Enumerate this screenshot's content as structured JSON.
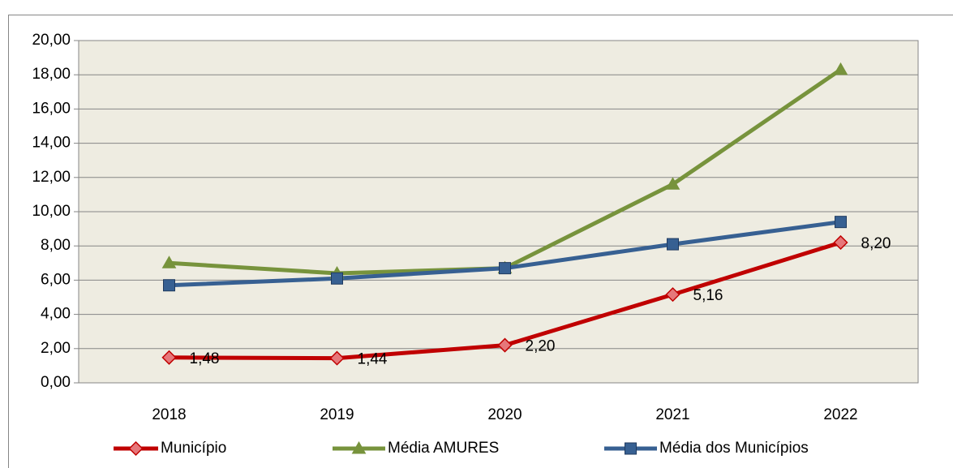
{
  "chart_data": {
    "type": "line",
    "categories": [
      "2018",
      "2019",
      "2020",
      "2021",
      "2022"
    ],
    "series": [
      {
        "name": "Município",
        "color": "#c00000",
        "marker": "diamond",
        "values": [
          1.48,
          1.44,
          2.2,
          5.16,
          8.2
        ],
        "value_labels": [
          "1,48",
          "1,44",
          "2,20",
          "5,16",
          "8,20"
        ]
      },
      {
        "name": "Média AMURES",
        "color": "#77933c",
        "marker": "triangle",
        "values": [
          7.0,
          6.4,
          6.7,
          11.6,
          18.3
        ]
      },
      {
        "name": "Média dos Municípios",
        "color": "#376092",
        "marker": "square",
        "values": [
          5.7,
          6.1,
          6.7,
          8.1,
          9.4
        ]
      }
    ],
    "ylim": [
      0,
      20
    ],
    "yticks": [
      {
        "value": 0,
        "label": "0,00"
      },
      {
        "value": 2,
        "label": "2,00"
      },
      {
        "value": 4,
        "label": "4,00"
      },
      {
        "value": 6,
        "label": "6,00"
      },
      {
        "value": 8,
        "label": "8,00"
      },
      {
        "value": 10,
        "label": "10,00"
      },
      {
        "value": 12,
        "label": "12,00"
      },
      {
        "value": 14,
        "label": "14,00"
      },
      {
        "value": 16,
        "label": "16,00"
      },
      {
        "value": 18,
        "label": "18,00"
      },
      {
        "value": 20,
        "label": "20,00"
      }
    ],
    "grid": true,
    "legend": "bottom",
    "plot_background": "#eeece1"
  }
}
